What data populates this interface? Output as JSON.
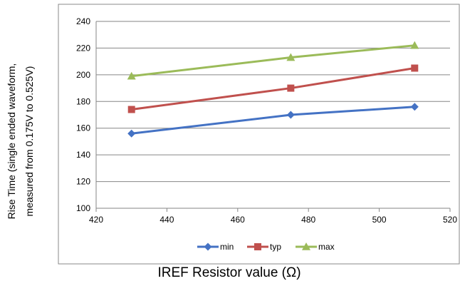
{
  "chart_data": {
    "type": "line",
    "xlabel": "IREF Resistor value (Ω)",
    "ylabel_line1": "Rise Time (single ended waveform,",
    "ylabel_line2": "measured from 0.175V to 0.525V)",
    "xlim": [
      420,
      520
    ],
    "ylim": [
      100,
      240
    ],
    "x_ticks": [
      420,
      440,
      460,
      480,
      500,
      520
    ],
    "y_ticks": [
      100,
      120,
      140,
      160,
      180,
      200,
      220,
      240
    ],
    "grid": "horizontal",
    "legend_position": "bottom",
    "series": [
      {
        "name": "min",
        "color": "#4472C4",
        "marker": "diamond",
        "x": [
          430,
          475,
          510
        ],
        "y": [
          156,
          170,
          176
        ]
      },
      {
        "name": "typ",
        "color": "#C0504D",
        "marker": "square",
        "x": [
          430,
          475,
          510
        ],
        "y": [
          174,
          190,
          205
        ]
      },
      {
        "name": "max",
        "color": "#9BBB59",
        "marker": "triangle",
        "x": [
          430,
          475,
          510
        ],
        "y": [
          199,
          213,
          222
        ]
      }
    ]
  }
}
